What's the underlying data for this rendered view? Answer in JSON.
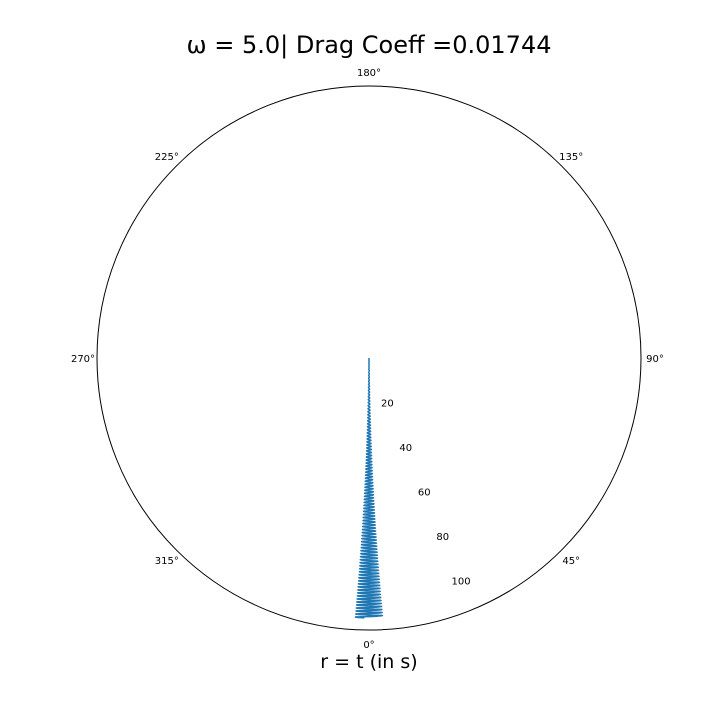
{
  "chart_data": {
    "type": "line",
    "projection": "polar",
    "title": "ω = 5.0| Drag Coeff =0.01744",
    "xlabel": "r = t (in s)",
    "theta_zero_location": "bottom",
    "theta_direction": "counterclockwise",
    "theta_ticks": [
      "0°",
      "45°",
      "90°",
      "135°",
      "180°",
      "225°",
      "270°",
      "315°"
    ],
    "theta_tick_degrees": [
      0,
      45,
      90,
      135,
      180,
      225,
      270,
      315
    ],
    "r_ticks": [
      "20",
      "40",
      "60",
      "80",
      "100"
    ],
    "r_tick_values": [
      20,
      40,
      60,
      80,
      100
    ],
    "rlim": [
      0,
      113
    ],
    "rlabel_position_deg": 22.5,
    "grid": false,
    "series": [
      {
        "color": "#1f77b4",
        "model": "theta(t) = A(t)·sin(ω·t), r = t",
        "t_range": [
          0,
          108
        ],
        "omega": 5.0,
        "amplitude_deg_start": 0.6,
        "amplitude_deg_end": 3.0
      }
    ]
  }
}
